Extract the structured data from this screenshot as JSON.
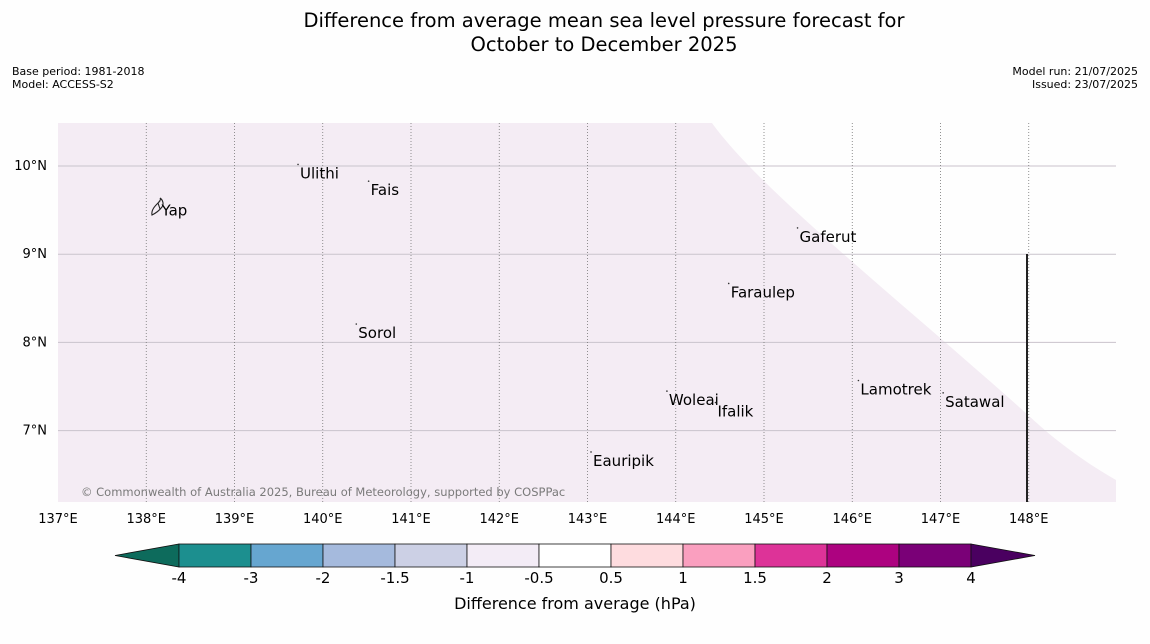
{
  "title": {
    "line1": "Difference from average mean sea level pressure forecast for",
    "line2": "October to December 2025"
  },
  "meta_left": {
    "base_period": "Base period: 1981-2018",
    "model": "Model: ACCESS-S2"
  },
  "meta_right": {
    "model_run": "Model run: 21/07/2025",
    "issued": "Issued: 23/07/2025"
  },
  "map": {
    "lon_range": [
      137,
      149
    ],
    "lat_range": [
      6.2,
      10.5
    ],
    "lon_ticks": [
      {
        "value": 137,
        "label": "137°E"
      },
      {
        "value": 138,
        "label": "138°E"
      },
      {
        "value": 139,
        "label": "139°E"
      },
      {
        "value": 140,
        "label": "140°E"
      },
      {
        "value": 141,
        "label": "141°E"
      },
      {
        "value": 142,
        "label": "142°E"
      },
      {
        "value": 143,
        "label": "143°E"
      },
      {
        "value": 144,
        "label": "144°E"
      },
      {
        "value": 145,
        "label": "145°E"
      },
      {
        "value": 146,
        "label": "146°E"
      },
      {
        "value": 147,
        "label": "147°E"
      },
      {
        "value": 148,
        "label": "148°E"
      }
    ],
    "lat_ticks": [
      {
        "value": 10,
        "label": "10°N"
      },
      {
        "value": 9,
        "label": "9°N"
      },
      {
        "value": 8,
        "label": "8°N"
      },
      {
        "value": 7,
        "label": "7°N"
      }
    ],
    "field_color": "#f4ecf4",
    "islands": [
      {
        "name": "Yap",
        "lon": 138.15,
        "lat": 9.53
      },
      {
        "name": "Ulithi",
        "lon": 139.72,
        "lat": 9.95
      },
      {
        "name": "Fais",
        "lon": 140.52,
        "lat": 9.76
      },
      {
        "name": "Gaferut",
        "lon": 145.38,
        "lat": 9.23
      },
      {
        "name": "Faraulep",
        "lon": 144.6,
        "lat": 8.6
      },
      {
        "name": "Sorol",
        "lon": 140.38,
        "lat": 8.14
      },
      {
        "name": "Lamotrek",
        "lon": 146.07,
        "lat": 7.5
      },
      {
        "name": "Woleai",
        "lon": 143.9,
        "lat": 7.38
      },
      {
        "name": "Ifalik",
        "lon": 144.45,
        "lat": 7.25
      },
      {
        "name": "Satawal",
        "lon": 147.03,
        "lat": 7.36
      },
      {
        "name": "Eauripik",
        "lon": 143.04,
        "lat": 6.69
      }
    ],
    "copyright": "© Commonwealth of Australia 2025, Bureau of Meteorology, supported by COSPPac"
  },
  "colorbar": {
    "label": "Difference from average (hPa)",
    "bins": [
      {
        "label": "-4",
        "color": "#1c8f8f"
      },
      {
        "label": "-3",
        "color": "#66a6d0"
      },
      {
        "label": "-2",
        "color": "#a5badd"
      },
      {
        "label": "-1.5",
        "color": "#ccd0e5"
      },
      {
        "label": "-1",
        "color": "#f3ecf6"
      },
      {
        "label": "-0.5",
        "color": "#ffffff"
      },
      {
        "label": "0.5",
        "color": "#fedcdf"
      },
      {
        "label": "1",
        "color": "#fa9fbf"
      },
      {
        "label": "1.5",
        "color": "#dd3398"
      },
      {
        "label": "2",
        "color": "#ad0280"
      },
      {
        "label": "3",
        "color": "#7a0077"
      },
      {
        "label": "4",
        "color": ""
      }
    ],
    "low_extend_color": "#0d6b5c",
    "high_extend_color": "#4a0060"
  }
}
